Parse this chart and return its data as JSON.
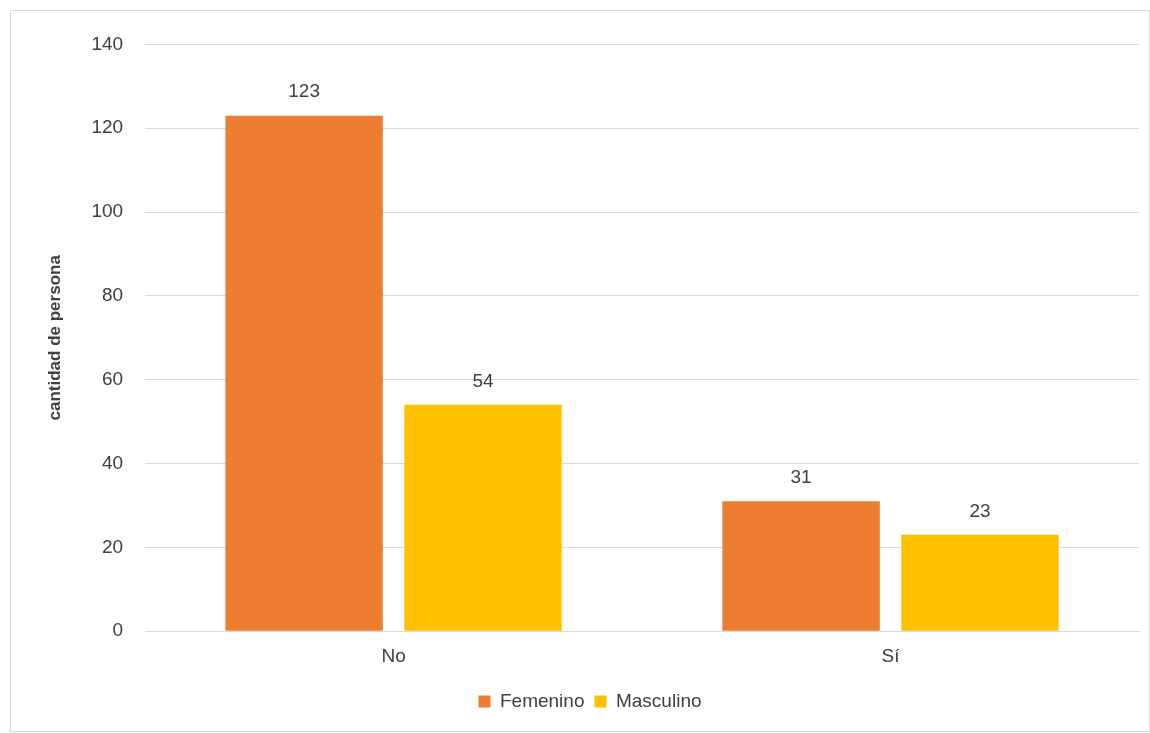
{
  "chart_data": {
    "type": "bar",
    "ylabel": "cantidad de persona",
    "categories": [
      "No",
      "Sí"
    ],
    "series": [
      {
        "name": "Femenino",
        "color": "#ed7d31",
        "values": [
          123,
          31
        ]
      },
      {
        "name": "Masculino",
        "color": "#ffc000",
        "values": [
          54,
          23
        ]
      }
    ],
    "ylim": [
      0,
      140
    ],
    "yticks": [
      0,
      20,
      40,
      60,
      80,
      100,
      120,
      140
    ],
    "grid": "y",
    "legend": "bottom",
    "data_labels": true
  }
}
